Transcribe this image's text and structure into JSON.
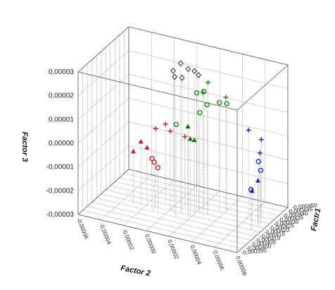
{
  "chart_data": {
    "type": "scatter",
    "title": "",
    "xlabel": "Factor 2",
    "ylabel": "Factr1",
    "zlabel": "Factor 3",
    "x_ticks": [
      "-0,00006",
      "-0,00004",
      "-0,00002",
      "0,00000",
      "0,00002",
      "0,00004",
      "0,00006",
      "0,00008"
    ],
    "y_ticks": [
      "-0,000395",
      "-0,000400",
      "-0,000405",
      "-0,000410",
      "-0,000415",
      "-0,000420",
      "-0,000425",
      "-0,000430",
      "-0,000435",
      "-0,000440",
      "-0,000445",
      "-0,000450"
    ],
    "z_ticks": [
      "-0,00003",
      "-0,00002",
      "-0,00001",
      "0,00000",
      "0,00001",
      "0,00002",
      "0,00003"
    ],
    "xlim": [
      -6e-05,
      8e-05
    ],
    "ylim": [
      -0.000395,
      -0.00045
    ],
    "zlim": [
      -3e-05,
      3e-05
    ],
    "grid": true,
    "series": [
      {
        "color": "#222222",
        "marker": "diamond",
        "points": [
          {
            "x": 1e-05,
            "y": -0.00042,
            "z": 3.3e-05
          },
          {
            "x": 5e-06,
            "y": -0.000418,
            "z": 3e-05
          },
          {
            "x": 1.5e-05,
            "y": -0.000422,
            "z": 3.05e-05
          },
          {
            "x": 8e-06,
            "y": -0.000416,
            "z": 2.85e-05
          },
          {
            "x": 1.8e-05,
            "y": -0.000425,
            "z": 2.9e-05
          },
          {
            "x": 1.2e-05,
            "y": -0.000419,
            "z": 2.75e-05
          },
          {
            "x": 2e-05,
            "y": -0.000427,
            "z": 2.68e-05
          }
        ]
      },
      {
        "color": "#1a8a1a",
        "marker": "plus",
        "points": [
          {
            "x": 3e-05,
            "y": -0.000425,
            "z": 2.55e-05
          },
          {
            "x": 2.8e-05,
            "y": -0.000422,
            "z": 2.2e-05
          },
          {
            "x": 4e-05,
            "y": -0.000432,
            "z": 1.8e-05
          }
        ]
      },
      {
        "color": "#1a8a1a",
        "marker": "circle",
        "points": [
          {
            "x": 2e-05,
            "y": -0.000425,
            "z": 2e-05
          },
          {
            "x": 2.4e-05,
            "y": -0.000428,
            "z": 2e-05
          },
          {
            "x": 3e-05,
            "y": -0.000424,
            "z": 1.65e-05
          },
          {
            "x": 3.6e-05,
            "y": -0.00043,
            "z": 1.6e-05
          },
          {
            "x": 4e-05,
            "y": -0.000433,
            "z": 1.5e-05
          },
          {
            "x": 2.6e-05,
            "y": -0.000421,
            "z": 1.38e-05
          },
          {
            "x": 1e-05,
            "y": -0.000415,
            "z": 9e-06
          }
        ]
      },
      {
        "color": "#1a6a1a",
        "marker": "triangle",
        "points": [
          {
            "x": 1.8e-05,
            "y": -0.000418,
            "z": 8e-06
          },
          {
            "x": 2e-05,
            "y": -0.000418,
            "z": 3e-06
          },
          {
            "x": 2.2e-05,
            "y": -0.00042,
            "z": 2e-06
          }
        ]
      },
      {
        "color": "#1a2db8",
        "marker": "plus",
        "points": [
          {
            "x": 6e-05,
            "y": -0.000432,
            "z": 6.5e-06
          },
          {
            "x": 6.8e-05,
            "y": -0.000436,
            "z": 2e-06
          },
          {
            "x": 7e-05,
            "y": -0.000432,
            "z": -2e-06
          }
        ]
      },
      {
        "color": "#1a2db8",
        "marker": "circle",
        "points": [
          {
            "x": 7.2e-05,
            "y": -0.000428,
            "z": -4e-06
          },
          {
            "x": 7.4e-05,
            "y": -0.000428,
            "z": -7.5e-06
          },
          {
            "x": 7.2e-05,
            "y": -0.00042,
            "z": -1.3e-05
          }
        ]
      },
      {
        "color": "#1a2db8",
        "marker": "triangle",
        "points": [
          {
            "x": 7.4e-05,
            "y": -0.000425,
            "z": -1.08e-05
          },
          {
            "x": 7.2e-05,
            "y": -0.000421,
            "z": -1.4e-05
          }
        ]
      },
      {
        "color": "#c42020",
        "marker": "plus",
        "points": [
          {
            "x": -1.2e-05,
            "y": -0.00042,
            "z": 3e-06
          },
          {
            "x": -5e-06,
            "y": -0.000422,
            "z": 5e-06
          },
          {
            "x": 0.0,
            "y": -0.000421,
            "z": 3e-06
          },
          {
            "x": 8e-06,
            "y": -0.000427,
            "z": -5e-07
          }
        ]
      },
      {
        "color": "#c42020",
        "marker": "triangle",
        "points": [
          {
            "x": -2.5e-05,
            "y": -0.00042,
            "z": -4e-06
          },
          {
            "x": -1.8e-05,
            "y": -0.000418,
            "z": -5e-06
          },
          {
            "x": -3e-05,
            "y": -0.000418,
            "z": -8e-06
          }
        ]
      },
      {
        "color": "#c42020",
        "marker": "circle",
        "points": [
          {
            "x": -1.2e-05,
            "y": -0.000416,
            "z": -8.2e-06
          },
          {
            "x": -1e-05,
            "y": -0.000416,
            "z": -9.5e-06
          },
          {
            "x": -6e-06,
            "y": -0.000415,
            "z": -1.1e-05
          }
        ]
      }
    ]
  }
}
